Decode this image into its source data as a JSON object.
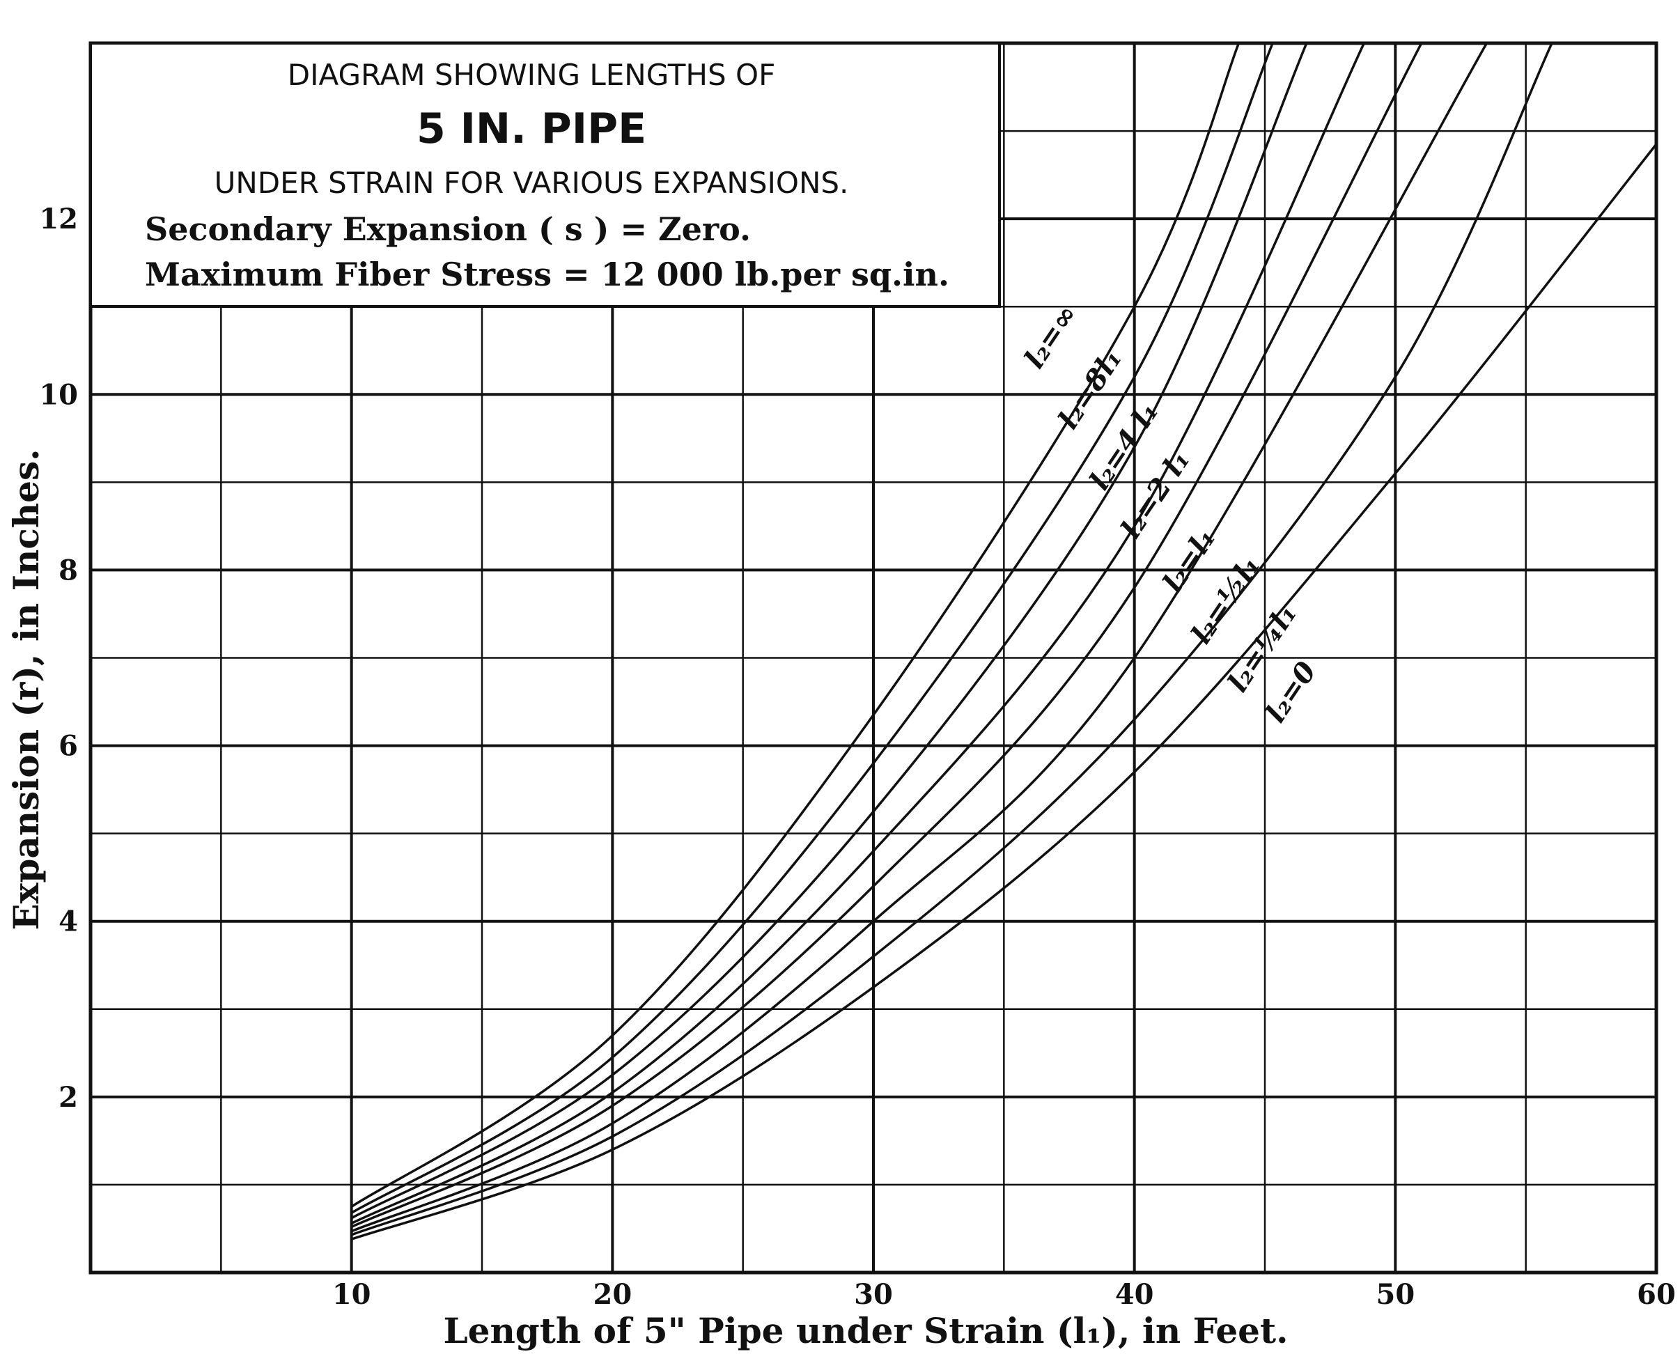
{
  "chart_data": {
    "type": "line",
    "title_lines": [
      "DIAGRAM SHOWING LENGTHS OF",
      "5 IN. PIPE",
      "UNDER STRAIN FOR VARIOUS EXPANSIONS.",
      "Secondary Expansion ( s ) = Zero.",
      "Maximum Fiber Stress = 12 000 lb.per sq.in."
    ],
    "xlabel": "Length of 5\" Pipe under Strain (l₁), in Feet.",
    "ylabel": "Expansion (r), in Inches.",
    "xlim": [
      0,
      60
    ],
    "ylim": [
      0,
      14
    ],
    "x_ticks": [
      10,
      20,
      30,
      40,
      50,
      60
    ],
    "x_tick_labels": [
      "10",
      "20",
      "30",
      "40",
      "50",
      "60"
    ],
    "y_ticks": [
      2,
      4,
      6,
      8,
      10,
      12
    ],
    "y_tick_labels": [
      "2",
      "4",
      "6",
      "8",
      "10",
      "12"
    ],
    "grid": true,
    "series": [
      {
        "name": "l₂=∞",
        "x": [
          10,
          20,
          30,
          40,
          44
        ],
        "y": [
          0.75,
          2.7,
          6.35,
          11.0,
          14.0
        ]
      },
      {
        "name": "l₂=8 l₁",
        "x": [
          10,
          20,
          30,
          40,
          45.3
        ],
        "y": [
          0.68,
          2.45,
          5.8,
          10.2,
          14.0
        ]
      },
      {
        "name": "l₂=4 l₁",
        "x": [
          10,
          20,
          30,
          40,
          46.6
        ],
        "y": [
          0.62,
          2.25,
          5.25,
          9.4,
          14.0
        ]
      },
      {
        "name": "l₂=2 l₁",
        "x": [
          10,
          20,
          30,
          40,
          48.8
        ],
        "y": [
          0.56,
          2.05,
          4.8,
          8.5,
          14.0
        ]
      },
      {
        "name": "l₂=l₁",
        "x": [
          10,
          20,
          30,
          40,
          51
        ],
        "y": [
          0.52,
          1.9,
          4.4,
          7.8,
          14.0
        ]
      },
      {
        "name": "l₂=½ l₁",
        "x": [
          10,
          20,
          30,
          40,
          53.5
        ],
        "y": [
          0.47,
          1.7,
          4.0,
          7.0,
          14.0
        ]
      },
      {
        "name": "l₂=¼ l₁",
        "x": [
          10,
          20,
          30,
          40,
          50,
          56
        ],
        "y": [
          0.43,
          1.55,
          3.6,
          6.3,
          10.2,
          14.0
        ]
      },
      {
        "name": "l₂=0",
        "x": [
          10,
          20,
          30,
          40,
          50,
          60
        ],
        "y": [
          0.38,
          1.4,
          3.25,
          5.7,
          9.1,
          12.85
        ]
      }
    ],
    "curve_label_text": [
      "l₂=∞",
      "l₂=8l₁",
      "l₂=4 l₁",
      "l₂=2 l₁",
      "l₂=l₁",
      "l₂=½l₁",
      "l₂=¼l₁",
      "l₂=0"
    ]
  }
}
